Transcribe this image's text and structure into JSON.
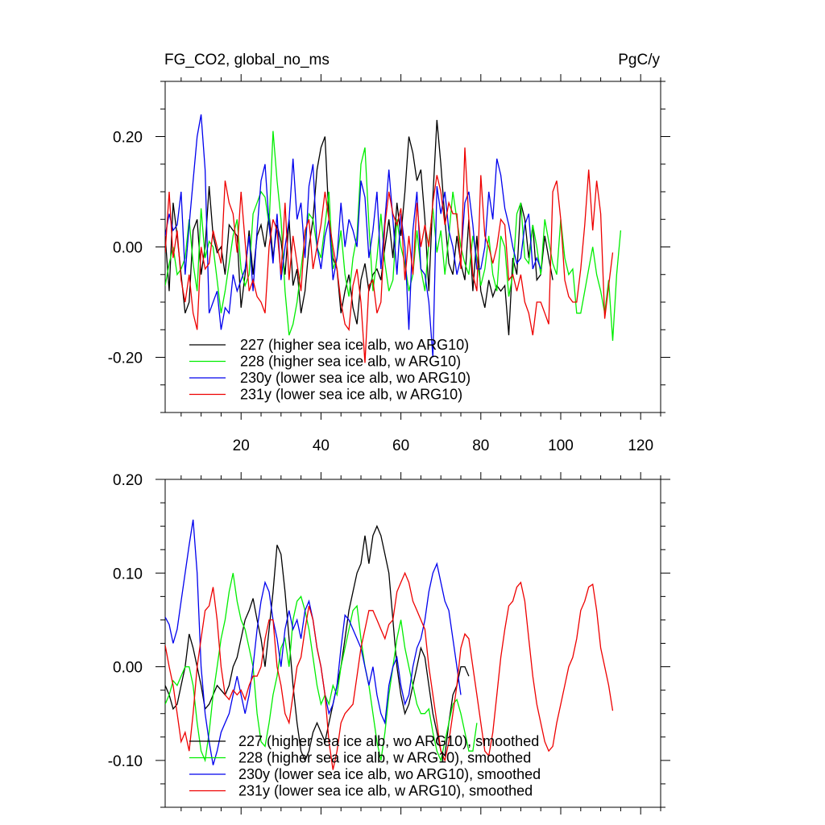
{
  "header": {
    "title": "FG_CO2, global_no_ms",
    "units": "PgC/y"
  },
  "chart_data": [
    {
      "type": "line",
      "xlim": [
        1,
        125
      ],
      "ylim": [
        -0.3,
        0.3
      ],
      "xticks": [
        20,
        40,
        60,
        80,
        100,
        120
      ],
      "xtick_labels": [
        "20",
        "40",
        "60",
        "80",
        "100",
        "120"
      ],
      "yticks": [
        -0.2,
        0.0,
        0.2
      ],
      "ytick_labels": [
        "-0.20",
        "0.00",
        "0.20"
      ],
      "legend_position": "bottom-left",
      "series": [
        {
          "name": "227 (higher sea ice alb, wo ARG10)",
          "color": "#000000",
          "x_start": 1,
          "y": [
            0.02,
            -0.08,
            0.08,
            0.02,
            -0.05,
            -0.12,
            -0.1,
            0.03,
            0.05,
            -0.05,
            0.0,
            0.11,
            0.02,
            -0.01,
            0.0,
            -0.05,
            0.04,
            0.03,
            0.02,
            -0.11,
            -0.05,
            0.03,
            -0.05,
            0.02,
            0.04,
            0.0,
            0.06,
            -0.02,
            0.04,
            0.01,
            -0.05,
            0.05,
            -0.07,
            -0.04,
            -0.12,
            -0.08,
            0.0,
            0.05,
            0.14,
            0.18,
            0.2,
            0.05,
            -0.02,
            -0.04,
            -0.12,
            -0.08,
            -0.05,
            -0.11,
            -0.14,
            -0.06,
            -0.03,
            -0.08,
            -0.05,
            -0.04,
            -0.06,
            0.0,
            0.05,
            -0.02,
            0.08,
            0.02,
            0.1,
            0.2,
            0.17,
            0.12,
            0.14,
            0.05,
            -0.08,
            0.09,
            0.23,
            0.15,
            0.05,
            -0.03,
            -0.05,
            0.02,
            -0.03,
            -0.06,
            0.05,
            -0.08,
            0.02,
            -0.08,
            -0.11,
            -0.06,
            -0.09,
            -0.07,
            -0.08,
            -0.07,
            -0.16,
            -0.02,
            -0.05,
            0.08,
            0.05,
            -0.02,
            0.04,
            -0.06,
            -0.05,
            0.02,
            -0.02,
            -0.06
          ]
        },
        {
          "name": "228 (higher sea ice alb, w ARG10)",
          "color": "#00ee00",
          "x_start": 1,
          "y": [
            -0.07,
            -0.03,
            0.0,
            -0.05,
            -0.04,
            -0.02,
            0.05,
            -0.03,
            -0.08,
            0.07,
            -0.02,
            0.01,
            0.0,
            -0.06,
            -0.12,
            -0.08,
            -0.03,
            0.02,
            0.05,
            -0.04,
            -0.07,
            -0.05,
            0.06,
            0.08,
            0.1,
            0.09,
            0.04,
            0.21,
            0.12,
            0.05,
            -0.08,
            -0.16,
            -0.14,
            -0.1,
            -0.04,
            0.02,
            0.06,
            0.05,
            0.0,
            -0.02,
            0.04,
            0.1,
            -0.04,
            -0.02,
            0.03,
            -0.05,
            -0.09,
            -0.02,
            0.02,
            0.15,
            0.18,
            0.04,
            -0.08,
            -0.02,
            0.06,
            -0.03,
            -0.08,
            -0.06,
            0.05,
            0.0,
            -0.03,
            -0.08,
            -0.05,
            0.03,
            -0.04,
            -0.08,
            0.01,
            0.07,
            -0.01,
            0.03,
            -0.05,
            0.02,
            0.1,
            0.05,
            0.0,
            -0.03,
            -0.05,
            0.02,
            -0.02,
            -0.07,
            -0.04,
            0.02,
            -0.05,
            -0.08,
            0.02,
            0.0,
            -0.09,
            -0.05,
            0.06,
            0.08,
            -0.02,
            -0.03,
            0.04,
            0.0,
            -0.05,
            0.05,
            0.01,
            -0.03,
            -0.05,
            0.05,
            -0.02,
            -0.05,
            -0.04,
            -0.12,
            -0.12,
            -0.08,
            -0.04,
            0.0,
            -0.05,
            -0.08,
            -0.12,
            -0.06,
            -0.17,
            -0.05,
            0.03
          ]
        },
        {
          "name": "230y (lower sea ice alb, wo ARG10)",
          "color": "#0000ee",
          "x_start": 1,
          "y": [
            0.02,
            0.06,
            0.03,
            0.04,
            0.1,
            -0.05,
            0.04,
            0.12,
            0.2,
            0.24,
            0.14,
            -0.12,
            -0.1,
            -0.08,
            -0.15,
            -0.11,
            -0.12,
            -0.05,
            -0.08,
            -0.06,
            -0.04,
            0.02,
            -0.08,
            0.03,
            0.12,
            0.15,
            0.04,
            -0.03,
            0.06,
            -0.06,
            0.0,
            0.05,
            0.16,
            0.05,
            0.08,
            -0.02,
            0.11,
            0.15,
            0.0,
            -0.04,
            0.02,
            0.05,
            -0.06,
            -0.02,
            0.08,
            0.0,
            0.05,
            0.03,
            0.0,
            0.12,
            0.09,
            -0.02,
            0.03,
            0.1,
            -0.04,
            0.05,
            0.14,
            0.05,
            -0.05,
            0.06,
            0.0,
            -0.15,
            0.03,
            0.1,
            -0.04,
            -0.05,
            -0.1,
            -0.2,
            0.11,
            0.06,
            0.1,
            0.03,
            0.0,
            -0.05,
            -0.02,
            0.08,
            0.1,
            0.04,
            -0.04,
            -0.04,
            0.0,
            0.1,
            0.05,
            0.16,
            0.13,
            0.07,
            0.04,
            0.0,
            -0.03,
            -0.02,
            0.04,
            0.06,
            -0.04,
            -0.02,
            -0.04
          ]
        },
        {
          "name": "231y (lower sea ice alb, w ARG10)",
          "color": "#ee0000",
          "x_start": 1,
          "y": [
            -0.01,
            0.1,
            -0.02,
            0.03,
            -0.06,
            -0.1,
            -0.05,
            -0.12,
            -0.15,
            0.0,
            -0.04,
            -0.03,
            0.03,
            0.0,
            -0.03,
            0.12,
            0.08,
            0.06,
            -0.01,
            0.1,
            0.01,
            -0.08,
            -0.06,
            -0.09,
            -0.1,
            -0.12,
            0.0,
            0.05,
            0.03,
            -0.05,
            0.08,
            -0.06,
            0.02,
            -0.03,
            -0.08,
            0.03,
            0.05,
            -0.04,
            0.0,
            0.04,
            0.1,
            0.05,
            0.0,
            -0.04,
            -0.1,
            -0.14,
            -0.15,
            -0.07,
            -0.04,
            -0.1,
            -0.21,
            -0.07,
            -0.06,
            -0.12,
            -0.1,
            0.04,
            0.1,
            0.06,
            0.04,
            0.07,
            -0.06,
            0.02,
            -0.05,
            0.08,
            0.0,
            0.04,
            0.0,
            0.08,
            0.13,
            0.1,
            0.04,
            0.08,
            0.06,
            0.06,
            -0.04,
            0.18,
            0.05,
            -0.05,
            -0.08,
            0.13,
            0.02,
            0.0,
            -0.03,
            0.0,
            0.05,
            0.04,
            -0.06,
            -0.05,
            -0.08,
            -0.05,
            -0.1,
            -0.12,
            -0.16,
            -0.1,
            -0.1,
            -0.12,
            -0.14,
            0.1,
            0.12,
            0.05,
            -0.06,
            -0.09,
            -0.1,
            -0.1,
            -0.04,
            0.04,
            0.14,
            0.03,
            0.12,
            0.06,
            -0.13,
            -0.07,
            -0.01
          ]
        }
      ]
    },
    {
      "type": "line",
      "xlim": [
        1,
        125
      ],
      "ylim": [
        -0.15,
        0.2
      ],
      "xticks": [
        20,
        40,
        60,
        80,
        100,
        120
      ],
      "xtick_labels": [],
      "yticks": [
        -0.1,
        0.0,
        0.1,
        0.2
      ],
      "ytick_labels": [
        "-0.10",
        "0.00",
        "0.10",
        "0.20"
      ],
      "legend_position": "bottom-left",
      "series": [
        {
          "name": "227 (higher sea ice alb, wo ARG10), smoothed",
          "color": "#000000",
          "x_start": 1,
          "y": [
            -0.02,
            -0.03,
            -0.045,
            -0.04,
            -0.02,
            0.0,
            0.035,
            0.02,
            0.0,
            -0.02,
            -0.045,
            -0.04,
            -0.03,
            -0.02,
            -0.025,
            -0.03,
            -0.02,
            0.0,
            0.01,
            0.03,
            0.05,
            0.06,
            0.073,
            0.05,
            0.03,
            0.0,
            0.04,
            0.08,
            0.13,
            0.12,
            0.08,
            0.03,
            -0.02,
            -0.06,
            -0.09,
            -0.1,
            -0.09,
            -0.07,
            -0.06,
            -0.07,
            -0.08,
            -0.06,
            -0.04,
            -0.02,
            0.0,
            0.03,
            0.06,
            0.08,
            0.1,
            0.11,
            0.14,
            0.11,
            0.14,
            0.15,
            0.14,
            0.12,
            0.1,
            0.05,
            0.0,
            -0.03,
            -0.05,
            -0.04,
            -0.02,
            0.0,
            0.02,
            0.01,
            -0.02,
            -0.05,
            -0.07,
            -0.09,
            -0.095,
            -0.06,
            -0.03,
            -0.02,
            0.0,
            0.0,
            -0.01
          ]
        },
        {
          "name": "228 (higher sea ice alb, w ARG10), smoothed",
          "color": "#00ee00",
          "x_start": 1,
          "y": [
            -0.04,
            -0.03,
            -0.015,
            -0.02,
            -0.01,
            0.0,
            0.0,
            -0.02,
            -0.06,
            -0.09,
            -0.1,
            -0.07,
            -0.03,
            0.0,
            0.03,
            0.05,
            0.08,
            0.1,
            0.07,
            0.05,
            0.04,
            0.02,
            0.0,
            -0.05,
            -0.08,
            -0.085,
            -0.06,
            -0.03,
            -0.01,
            0.02,
            0.03,
            0.0,
            0.05,
            0.07,
            0.075,
            0.06,
            0.04,
            0.01,
            -0.02,
            -0.04,
            -0.03,
            -0.04,
            -0.02,
            -0.03,
            0.0,
            0.02,
            0.04,
            0.06,
            0.065,
            0.03,
            0.0,
            -0.02,
            -0.05,
            -0.08,
            -0.1,
            -0.07,
            -0.03,
            0.0,
            0.03,
            0.05,
            0.02,
            0.0,
            -0.02,
            -0.04,
            -0.05,
            -0.05,
            -0.045,
            -0.07,
            -0.09,
            -0.1,
            -0.08,
            -0.06,
            -0.04,
            -0.035,
            -0.05,
            -0.07,
            -0.09,
            -0.09,
            -0.06
          ]
        },
        {
          "name": "230y (lower sea ice alb, wo ARG10), smoothed",
          "color": "#0000ee",
          "x_start": 1,
          "y": [
            0.053,
            0.045,
            0.025,
            0.04,
            0.07,
            0.1,
            0.13,
            0.157,
            0.1,
            0.0,
            -0.05,
            -0.08,
            -0.105,
            -0.09,
            -0.07,
            -0.06,
            -0.05,
            -0.03,
            -0.01,
            -0.03,
            -0.05,
            -0.03,
            0.0,
            0.04,
            0.07,
            0.09,
            0.08,
            0.05,
            0.03,
            0.0,
            0.04,
            0.06,
            0.04,
            0.05,
            0.03,
            0.06,
            0.07,
            0.05,
            0.02,
            0.0,
            -0.03,
            -0.05,
            -0.04,
            -0.02,
            0.02,
            0.055,
            0.05,
            0.04,
            0.03,
            0.02,
            0.0,
            -0.02,
            0.0,
            -0.03,
            -0.05,
            -0.06,
            -0.02,
            0.0,
            0.01,
            -0.02,
            -0.04,
            -0.03,
            0.0,
            0.02,
            0.03,
            0.05,
            0.08,
            0.1,
            0.11,
            0.09,
            0.07,
            0.06,
            0.03,
            0.0,
            -0.03
          ]
        },
        {
          "name": "231y (lower sea ice alb, w ARG10), smoothed",
          "color": "#ee0000",
          "x_start": 1,
          "y": [
            0.023,
            0.0,
            -0.02,
            -0.05,
            -0.08,
            -0.07,
            -0.09,
            -0.05,
            0.0,
            0.03,
            0.06,
            0.065,
            0.085,
            0.05,
            0.0,
            -0.03,
            -0.035,
            -0.025,
            -0.03,
            -0.025,
            -0.035,
            -0.02,
            -0.01,
            -0.01,
            0.0,
            0.03,
            0.05,
            0.05,
            0.0,
            -0.02,
            -0.05,
            -0.06,
            -0.03,
            0.0,
            0.01,
            0.04,
            0.065,
            0.05,
            0.02,
            0.0,
            -0.03,
            -0.08,
            -0.11,
            -0.09,
            -0.06,
            -0.05,
            -0.045,
            -0.04,
            -0.01,
            0.02,
            0.04,
            0.06,
            0.06,
            0.05,
            0.04,
            0.03,
            0.045,
            0.05,
            0.08,
            0.09,
            0.1,
            0.09,
            0.07,
            0.06,
            0.05,
            0.04,
            0.0,
            -0.03,
            -0.06,
            -0.09,
            -0.1,
            -0.08,
            -0.05,
            -0.02,
            0.02,
            0.035,
            0.03,
            0.0,
            -0.03,
            -0.06,
            -0.09,
            -0.095,
            -0.07,
            -0.03,
            0.01,
            0.04,
            0.065,
            0.07,
            0.085,
            0.09,
            0.07,
            0.03,
            -0.01,
            -0.04,
            -0.06,
            -0.08,
            -0.09,
            -0.085,
            -0.06,
            -0.04,
            -0.02,
            0.0,
            0.01,
            0.03,
            0.06,
            0.07,
            0.085,
            0.088,
            0.06,
            0.02,
            0.0,
            -0.02,
            -0.047
          ]
        }
      ]
    }
  ]
}
